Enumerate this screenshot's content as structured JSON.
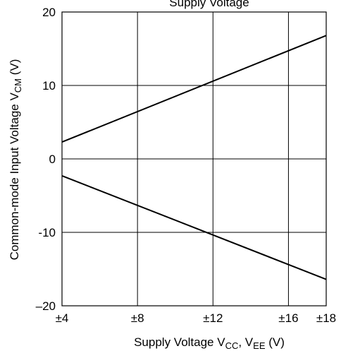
{
  "chart_data": {
    "type": "line",
    "title": "Supply Voltage",
    "xlabel": {
      "main": "Supply Voltage  V",
      "sub1": "CC",
      "mid": ", V",
      "sub2": "EE",
      "unit": "  (V)"
    },
    "ylabel": {
      "main": "Common-mode Input Voltage  V",
      "sub": "CM",
      "unit": "  (V)"
    },
    "xlim": [
      4,
      18
    ],
    "ylim": [
      -20,
      20
    ],
    "x_ticks": [
      4,
      8,
      12,
      16,
      18
    ],
    "x_tick_labels": [
      "±4",
      "±8",
      "±12",
      "±16",
      "±18"
    ],
    "y_ticks": [
      -20,
      -10,
      0,
      10,
      20
    ],
    "y_tick_labels": [
      "–20",
      "-10",
      "0",
      "10",
      "20"
    ],
    "grid": true,
    "series": [
      {
        "x": [
          4,
          18
        ],
        "y": [
          2.3,
          16.8
        ]
      },
      {
        "x": [
          4,
          18
        ],
        "y": [
          -2.3,
          -16.4
        ]
      }
    ]
  }
}
